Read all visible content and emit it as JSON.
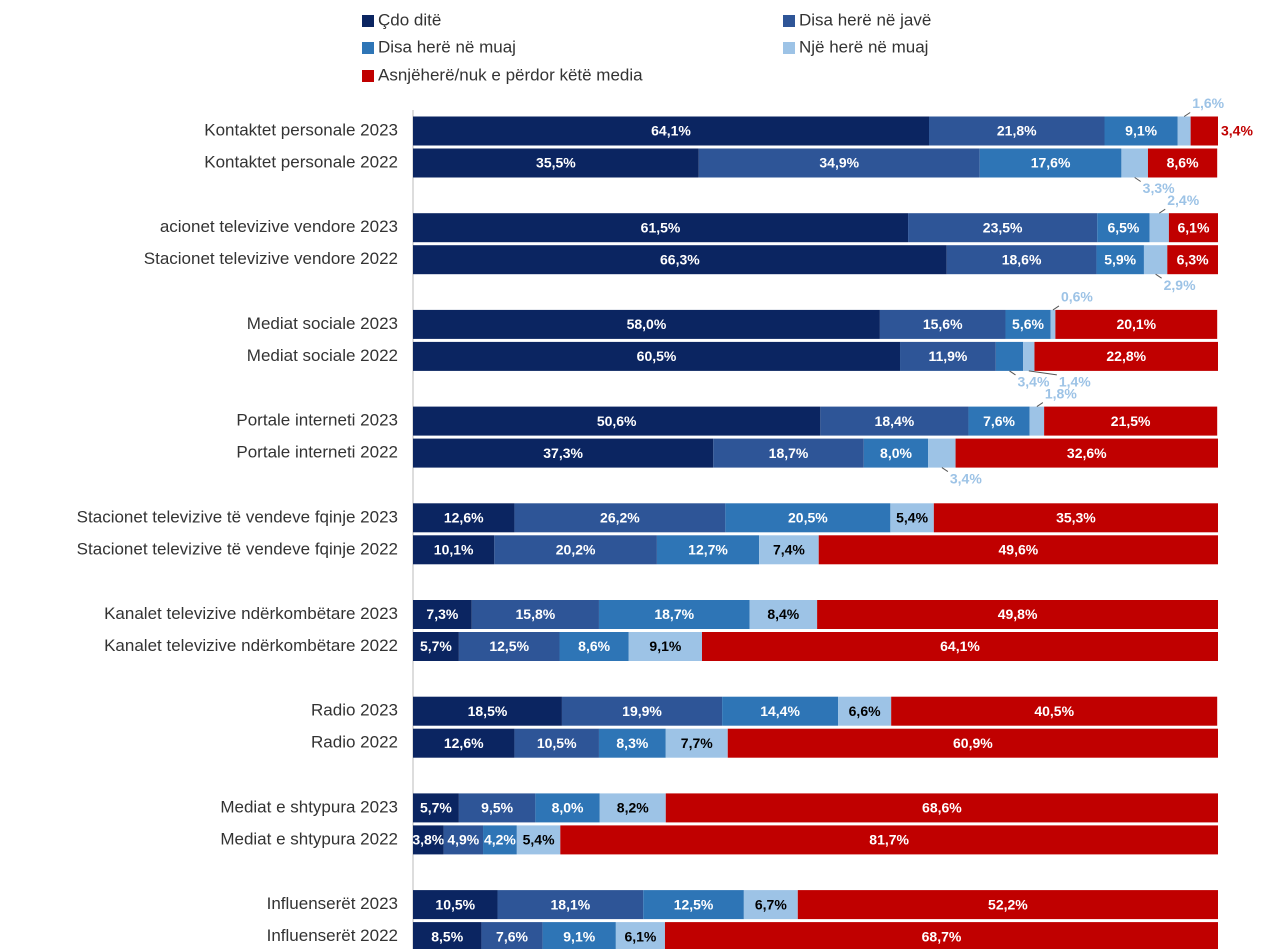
{
  "chart_data": {
    "type": "stacked-bar-horizontal",
    "categories": [
      "Kontaktet personale 2023",
      "Kontaktet personale 2022",
      "acionet televizive vendore 2023",
      "Stacionet televizive vendore 2022",
      "Mediat sociale 2023",
      "Mediat sociale 2022",
      "Portale interneti 2023",
      "Portale interneti 2022",
      "Stacionet televizive të vendeve fqinje 2023",
      "Stacionet televizive të vendeve fqinje 2022",
      "Kanalet televizive ndërkombëtare 2023",
      "Kanalet televizive ndërkombëtare 2022",
      "Radio 2023",
      "Radio 2022",
      "Mediat e shtypura 2023",
      "Mediat e shtypura 2022",
      "Influenserët 2023",
      "Influenserët 2022"
    ],
    "xlim": [
      0,
      100
    ],
    "series": [
      {
        "name": "Çdo ditë",
        "color": "#0b2561",
        "values": [
          64.1,
          35.5,
          61.5,
          66.3,
          58.0,
          60.5,
          50.6,
          37.3,
          12.6,
          10.1,
          7.3,
          5.7,
          18.5,
          12.6,
          5.7,
          3.8,
          10.5,
          8.5
        ],
        "value_labels": [
          "64,1%",
          "35,5%",
          "61,5%",
          "66,3%",
          "58,0%",
          "60,5%",
          "50,6%",
          "37,3%",
          "12,6%",
          "10,1%",
          "7,3%",
          "5,7%",
          "18,5%",
          "12,6%",
          "5,7%",
          "3,8%",
          "10,5%",
          "8,5%"
        ]
      },
      {
        "name": "Disa herë në javë",
        "color": "#2e5597",
        "values": [
          21.8,
          34.9,
          23.5,
          18.6,
          15.6,
          11.9,
          18.4,
          18.7,
          26.2,
          20.2,
          15.8,
          12.5,
          19.9,
          10.5,
          9.5,
          4.9,
          18.1,
          7.6
        ],
        "value_labels": [
          "21,8%",
          "34,9%",
          "23,5%",
          "18,6%",
          "15,6%",
          "11,9%",
          "18,4%",
          "18,7%",
          "26,2%",
          "20,2%",
          "15,8%",
          "12,5%",
          "19,9%",
          "10,5%",
          "9,5%",
          "4,9%",
          "18,1%",
          "7,6%"
        ]
      },
      {
        "name": "Disa herë në muaj",
        "color": "#2e75b6",
        "values": [
          9.1,
          17.6,
          6.5,
          5.9,
          5.6,
          3.4,
          7.6,
          8.0,
          20.5,
          12.7,
          18.7,
          8.6,
          14.4,
          8.3,
          8.0,
          4.2,
          12.5,
          9.1
        ],
        "value_labels": [
          "9,1%",
          "17,6%",
          "6,5%",
          "5,9%",
          "5,6%",
          "3,4%",
          "7,6%",
          "8,0%",
          "20,5%",
          "12,7%",
          "18,7%",
          "8,6%",
          "14,4%",
          "8,3%",
          "8,0%",
          "4,2%",
          "12,5%",
          "9,1%"
        ]
      },
      {
        "name": "Një herë në muaj",
        "color": "#9dc3e6",
        "values": [
          1.6,
          3.3,
          2.4,
          2.9,
          0.6,
          1.4,
          1.8,
          3.4,
          5.4,
          7.4,
          8.4,
          9.1,
          6.6,
          7.7,
          8.2,
          5.4,
          6.7,
          6.1
        ],
        "value_labels": [
          "1,6%",
          "3,3%",
          "2,4%",
          "2,9%",
          "0,6%",
          "1,4%",
          "1,8%",
          "3,4%",
          "5,4%",
          "7,4%",
          "8,4%",
          "9,1%",
          "6,6%",
          "7,7%",
          "8,2%",
          "5,4%",
          "6,7%",
          "6,1%"
        ]
      },
      {
        "name": "Asnjëherë/nuk e përdor këtë media",
        "color": "#c00000",
        "values": [
          3.4,
          8.6,
          6.1,
          6.3,
          20.1,
          22.8,
          21.5,
          32.6,
          35.3,
          49.6,
          49.8,
          64.1,
          40.5,
          60.9,
          68.6,
          81.7,
          52.2,
          68.7
        ],
        "value_labels": [
          "3,4%",
          "8,6%",
          "6,1%",
          "6,3%",
          "20,1%",
          "22,8%",
          "21,5%",
          "32,6%",
          "35,3%",
          "49,6%",
          "49,8%",
          "64,1%",
          "40,5%",
          "60,9%",
          "68,6%",
          "81,7%",
          "52,2%",
          "68,7%"
        ]
      }
    ]
  }
}
